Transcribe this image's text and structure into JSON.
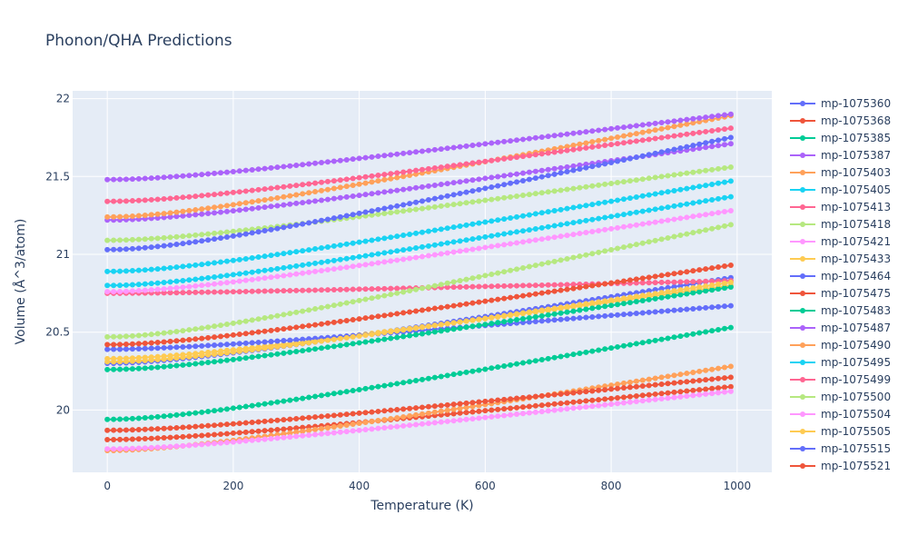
{
  "chart_data": {
    "type": "line",
    "title": "Phonon/QHA Predictions",
    "xlabel": "Temperature (K)",
    "ylabel": "Volume (Å^3/atom)",
    "xlim": [
      -55,
      1055
    ],
    "ylim": [
      19.6,
      22.05
    ],
    "xticks": [
      0,
      200,
      400,
      600,
      800,
      1000
    ],
    "yticks": [
      20,
      20.5,
      21,
      21.5,
      22
    ],
    "grid": true,
    "legend_position": "right",
    "x_range": {
      "start": 0,
      "end": 990,
      "step": 10
    },
    "series": [
      {
        "name": "mp-1075360",
        "color": "#636efa",
        "v0": 20.3,
        "v1": 20.85
      },
      {
        "name": "mp-1075368",
        "color": "#EF553B",
        "v0": 19.81,
        "v1": 20.15
      },
      {
        "name": "mp-1075385",
        "color": "#00cc96",
        "v0": 19.94,
        "v1": 20.53
      },
      {
        "name": "mp-1075387",
        "color": "#ab63fa",
        "v0": 21.22,
        "v1": 21.71
      },
      {
        "name": "mp-1075403",
        "color": "#FFA15A",
        "v0": 21.24,
        "v1": 21.89
      },
      {
        "name": "mp-1075405",
        "color": "#19d3f3",
        "v0": 20.89,
        "v1": 21.47
      },
      {
        "name": "mp-1075413",
        "color": "#FF6692",
        "v0": 20.75,
        "v1": 20.83
      },
      {
        "name": "mp-1075418",
        "color": "#B6E880",
        "v0": 20.47,
        "v1": 21.19
      },
      {
        "name": "mp-1075421",
        "color": "#FF97FF",
        "v0": 20.76,
        "v1": 21.28
      },
      {
        "name": "mp-1075433",
        "color": "#FECB52",
        "v0": 20.33,
        "v1": 20.8
      },
      {
        "name": "mp-1075464",
        "color": "#636efa",
        "v0": 20.39,
        "v1": 20.67
      },
      {
        "name": "mp-1075475",
        "color": "#EF553B",
        "v0": 20.42,
        "v1": 20.93
      },
      {
        "name": "mp-1075483",
        "color": "#00cc96",
        "v0": 20.26,
        "v1": 20.79
      },
      {
        "name": "mp-1075487",
        "color": "#ab63fa",
        "v0": 21.48,
        "v1": 21.9
      },
      {
        "name": "mp-1075490",
        "color": "#FFA15A",
        "v0": 19.74,
        "v1": 20.28
      },
      {
        "name": "mp-1075495",
        "color": "#19d3f3",
        "v0": 20.8,
        "v1": 21.37
      },
      {
        "name": "mp-1075499",
        "color": "#FF6692",
        "v0": 21.34,
        "v1": 21.81
      },
      {
        "name": "mp-1075500",
        "color": "#B6E880",
        "v0": 21.09,
        "v1": 21.56
      },
      {
        "name": "mp-1075504",
        "color": "#FF97FF",
        "v0": 19.75,
        "v1": 20.12
      },
      {
        "name": "mp-1075505",
        "color": "#FECB52",
        "v0": 20.31,
        "v1": 20.82
      },
      {
        "name": "mp-1075515",
        "color": "#636efa",
        "v0": 21.03,
        "v1": 21.75
      },
      {
        "name": "mp-1075521",
        "color": "#EF553B",
        "v0": 19.87,
        "v1": 20.21
      }
    ]
  }
}
